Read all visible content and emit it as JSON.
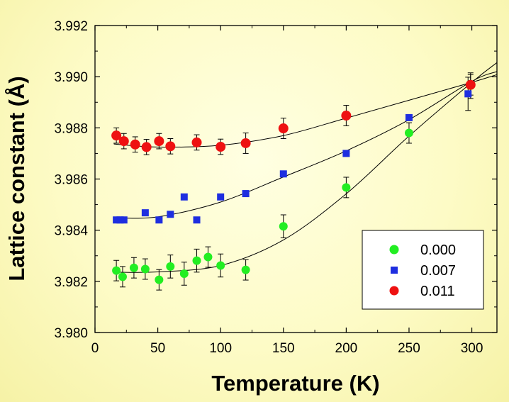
{
  "chart_data": {
    "type": "scatter",
    "xlabel": "Temperature (K)",
    "ylabel": "Lattice constant (Å)",
    "xlim": [
      0,
      320
    ],
    "ylim": [
      3.98,
      3.992
    ],
    "xticks": [
      0,
      50,
      100,
      150,
      200,
      250,
      300
    ],
    "xtick_labels": [
      "0",
      "50",
      "100",
      "150",
      "200",
      "250",
      "300"
    ],
    "yticks": [
      3.98,
      3.982,
      3.984,
      3.986,
      3.988,
      3.99,
      3.992
    ],
    "ytick_labels": [
      "3.980",
      "3.982",
      "3.984",
      "3.986",
      "3.988",
      "3.990",
      "3.992"
    ],
    "legend_position": "bottom-right",
    "series": [
      {
        "name": "0.000",
        "marker": "circle",
        "color": "#22ee22",
        "x": [
          17,
          22,
          31,
          40,
          51,
          60,
          71,
          81,
          90,
          100,
          120,
          150,
          200,
          250,
          299
        ],
        "y": [
          3.98242,
          3.98218,
          3.98253,
          3.98248,
          3.98206,
          3.98258,
          3.9823,
          3.98281,
          3.98295,
          3.98262,
          3.98245,
          3.98415,
          3.98567,
          3.9878,
          3.98965
        ],
        "err": [
          0.0004,
          0.0004,
          0.0004,
          0.0004,
          0.0004,
          0.00045,
          0.00045,
          0.00045,
          0.0004,
          0.00045,
          0.0004,
          0.00045,
          0.0004,
          0.0004,
          0.0005
        ],
        "fit": [
          [
            15,
            3.98236
          ],
          [
            50,
            3.98237
          ],
          [
            100,
            3.98262
          ],
          [
            150,
            3.98362
          ],
          [
            200,
            3.98542
          ],
          [
            250,
            3.98768
          ],
          [
            300,
            3.98978
          ],
          [
            320,
            3.99055
          ]
        ]
      },
      {
        "name": "0.007",
        "marker": "square",
        "color": "#1e2ee0",
        "x": [
          17,
          20,
          23,
          40,
          51,
          60,
          71,
          81,
          100,
          120,
          150,
          200,
          250,
          297
        ],
        "y": [
          3.9844,
          3.9844,
          3.9844,
          3.98468,
          3.9844,
          3.98462,
          3.9853,
          3.9844,
          3.9853,
          3.98543,
          3.9862,
          3.987,
          3.9884,
          3.98933
        ],
        "err": [
          0.0001,
          0.0001,
          0.0001,
          0.0001,
          0.0001,
          0.0001,
          0.0001,
          0.0001,
          0.0001,
          0.0001,
          0.0001,
          0.0001,
          0.0001,
          0.00065
        ],
        "fit": [
          [
            15,
            3.98448
          ],
          [
            50,
            3.98452
          ],
          [
            100,
            3.9851
          ],
          [
            150,
            3.98608
          ],
          [
            200,
            3.9871
          ],
          [
            250,
            3.98832
          ],
          [
            300,
            3.98982
          ],
          [
            320,
            3.9902
          ]
        ]
      },
      {
        "name": "0.011",
        "marker": "circle",
        "color": "#ee1111",
        "x": [
          17,
          23,
          32,
          41,
          51,
          60,
          81,
          100,
          120,
          150,
          200,
          299
        ],
        "y": [
          3.9877,
          3.98748,
          3.98735,
          3.98725,
          3.98748,
          3.98728,
          3.98743,
          3.98726,
          3.9874,
          3.98798,
          3.98848,
          3.98968
        ],
        "err": [
          0.0003,
          0.0003,
          0.0003,
          0.0003,
          0.0003,
          0.0003,
          0.0003,
          0.0003,
          0.0004,
          0.0004,
          0.0004,
          0.0004
        ],
        "fit": [
          [
            15,
            3.98737
          ],
          [
            50,
            3.98725
          ],
          [
            100,
            3.98732
          ],
          [
            150,
            3.9877
          ],
          [
            200,
            3.98838
          ],
          [
            250,
            3.98908
          ],
          [
            300,
            3.98978
          ],
          [
            320,
            3.99008
          ]
        ]
      }
    ]
  }
}
